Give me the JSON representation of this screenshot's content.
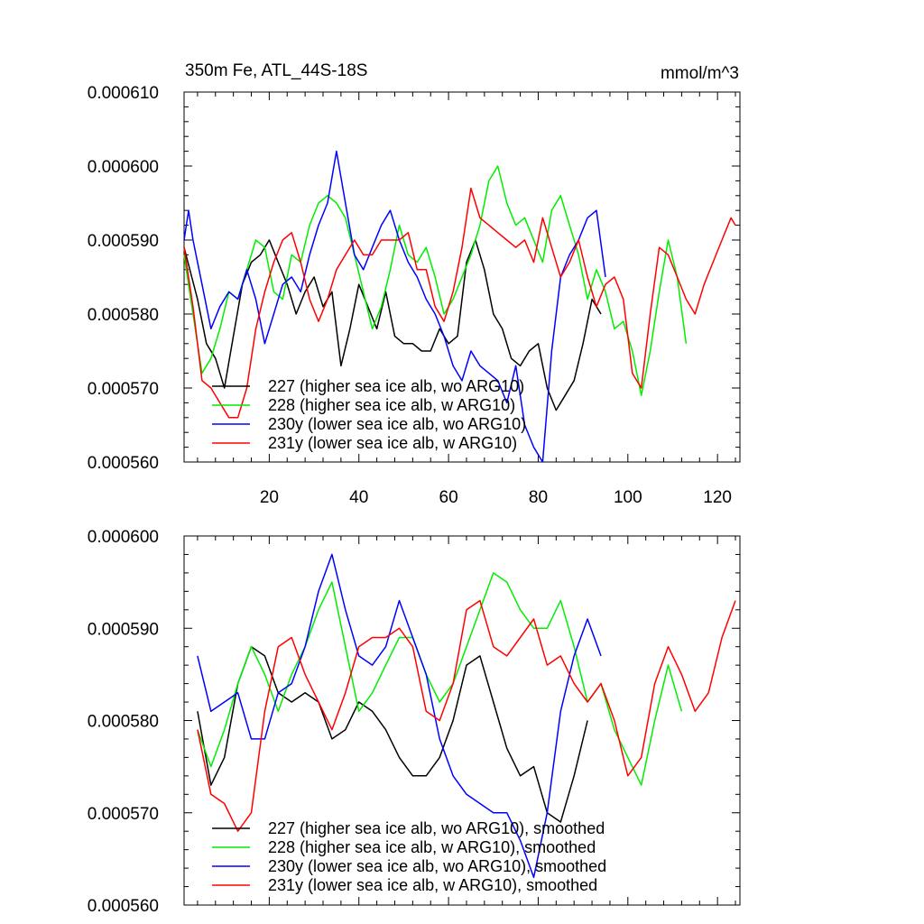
{
  "title_left": "350m Fe, ATL_44S-18S",
  "title_right": "mmol/m^3",
  "colors": {
    "227": "#000000",
    "228": "#00ee00",
    "230y": "#0000ff",
    "231y": "#ff0000"
  },
  "chart_data": [
    {
      "type": "line",
      "xlim": [
        1,
        125
      ],
      "ylim": [
        0.00056,
        0.00061
      ],
      "xticks": [
        "20",
        "40",
        "60",
        "80",
        "100",
        "120"
      ],
      "yticks": [
        "0.000560",
        "0.000570",
        "0.000580",
        "0.000590",
        "0.000600",
        "0.000610"
      ],
      "legend_loc": "bottom-left",
      "series": [
        {
          "id": "227",
          "name": "227 (higher sea ice alb, wo ARG10)",
          "x": [
            1,
            4,
            6,
            8,
            10,
            12,
            14,
            16,
            18,
            20,
            22,
            24,
            26,
            28,
            30,
            32,
            34,
            36,
            38,
            40,
            42,
            44,
            46,
            48,
            50,
            52,
            54,
            56,
            58,
            60,
            62,
            64,
            66,
            68,
            70,
            72,
            74,
            76,
            78,
            80,
            82,
            84,
            86,
            88,
            90,
            92,
            94
          ],
          "y": [
            0.000589,
            0.000582,
            0.000576,
            0.000574,
            0.00057,
            0.000577,
            0.000584,
            0.000587,
            0.000588,
            0.00059,
            0.000587,
            0.000584,
            0.00058,
            0.000583,
            0.000585,
            0.000581,
            0.000583,
            0.000573,
            0.000578,
            0.000584,
            0.000581,
            0.000578,
            0.000583,
            0.000577,
            0.000576,
            0.000576,
            0.000575,
            0.000575,
            0.000578,
            0.000576,
            0.000577,
            0.000587,
            0.00059,
            0.000586,
            0.00058,
            0.000578,
            0.000574,
            0.000573,
            0.000575,
            0.000576,
            0.00057,
            0.000567,
            0.000569,
            0.000571,
            0.000576,
            0.000582,
            0.00058
          ]
        },
        {
          "id": "228",
          "name": "228 (higher sea ice alb, w ARG10)",
          "x": [
            1,
            3,
            5,
            7,
            9,
            11,
            13,
            15,
            17,
            19,
            21,
            23,
            25,
            27,
            29,
            31,
            33,
            35,
            37,
            39,
            41,
            43,
            45,
            47,
            49,
            51,
            53,
            55,
            57,
            59,
            61,
            63,
            65,
            67,
            69,
            71,
            73,
            75,
            77,
            79,
            81,
            83,
            85,
            87,
            89,
            91,
            93,
            95,
            97,
            99,
            101,
            103,
            105,
            107,
            109,
            111,
            113
          ],
          "y": [
            0.000588,
            0.00058,
            0.000572,
            0.000574,
            0.000578,
            0.000583,
            0.000582,
            0.000586,
            0.00059,
            0.000589,
            0.000583,
            0.000582,
            0.000588,
            0.000587,
            0.000592,
            0.000595,
            0.000596,
            0.000595,
            0.000593,
            0.000588,
            0.000583,
            0.000578,
            0.000581,
            0.000586,
            0.000592,
            0.000588,
            0.000587,
            0.000589,
            0.000585,
            0.00058,
            0.000582,
            0.000585,
            0.000588,
            0.000592,
            0.000598,
            0.0006,
            0.000595,
            0.000592,
            0.000593,
            0.00059,
            0.000587,
            0.000594,
            0.000596,
            0.000592,
            0.000588,
            0.000582,
            0.000586,
            0.000583,
            0.000578,
            0.000579,
            0.000575,
            0.000569,
            0.000575,
            0.000583,
            0.00059,
            0.000585,
            0.000576
          ]
        },
        {
          "id": "230y",
          "name": "230y (lower sea ice alb, wo ARG10)",
          "x": [
            1,
            2,
            3,
            5,
            7,
            9,
            11,
            13,
            15,
            17,
            19,
            21,
            23,
            25,
            27,
            29,
            31,
            33,
            35,
            37,
            39,
            41,
            43,
            45,
            47,
            49,
            51,
            53,
            55,
            57,
            59,
            61,
            63,
            65,
            67,
            69,
            71,
            73,
            75,
            77,
            79,
            81,
            83,
            85,
            87,
            89,
            91,
            93,
            95
          ],
          "y": [
            0.00059,
            0.000594,
            0.00059,
            0.000584,
            0.000578,
            0.000581,
            0.000583,
            0.000582,
            0.000586,
            0.000582,
            0.000576,
            0.00058,
            0.000584,
            0.000585,
            0.000583,
            0.000588,
            0.000592,
            0.000595,
            0.000602,
            0.000595,
            0.000588,
            0.000586,
            0.000589,
            0.000592,
            0.000594,
            0.00059,
            0.000587,
            0.000585,
            0.000582,
            0.00058,
            0.000577,
            0.000573,
            0.000571,
            0.000575,
            0.000573,
            0.000572,
            0.000571,
            0.000568,
            0.000573,
            0.000565,
            0.000562,
            0.00056,
            0.000575,
            0.000585,
            0.000588,
            0.00059,
            0.000593,
            0.000594,
            0.000585
          ]
        },
        {
          "id": "231y",
          "name": "231y (lower sea ice alb, w ARG10)",
          "x": [
            1,
            3,
            5,
            7,
            9,
            11,
            13,
            15,
            17,
            19,
            21,
            23,
            25,
            27,
            29,
            31,
            33,
            35,
            37,
            39,
            41,
            43,
            45,
            47,
            49,
            51,
            53,
            55,
            57,
            59,
            61,
            63,
            65,
            67,
            69,
            71,
            73,
            75,
            77,
            79,
            81,
            83,
            85,
            87,
            89,
            91,
            93,
            95,
            97,
            99,
            101,
            103,
            105,
            107,
            109,
            111,
            113,
            115,
            117,
            119,
            121,
            123,
            124
          ],
          "y": [
            0.000589,
            0.000581,
            0.000571,
            0.00057,
            0.000568,
            0.000566,
            0.000566,
            0.00057,
            0.000578,
            0.000583,
            0.000587,
            0.00059,
            0.000591,
            0.000587,
            0.000582,
            0.000579,
            0.000582,
            0.000586,
            0.000588,
            0.00059,
            0.000588,
            0.000588,
            0.00059,
            0.00059,
            0.00059,
            0.000591,
            0.000586,
            0.000586,
            0.000581,
            0.000579,
            0.000583,
            0.000589,
            0.000597,
            0.000593,
            0.000592,
            0.000591,
            0.00059,
            0.000589,
            0.00059,
            0.000587,
            0.000593,
            0.000589,
            0.000585,
            0.000587,
            0.00059,
            0.000585,
            0.000581,
            0.000584,
            0.000585,
            0.000582,
            0.000572,
            0.00057,
            0.00058,
            0.000589,
            0.000588,
            0.000585,
            0.000582,
            0.00058,
            0.000584,
            0.000587,
            0.00059,
            0.000593,
            0.000592
          ]
        }
      ]
    },
    {
      "type": "line",
      "xlim": [
        1,
        125
      ],
      "ylim": [
        0.00056,
        0.0006
      ],
      "xticks": [],
      "yticks": [
        "0.000560",
        "0.000570",
        "0.000580",
        "0.000590",
        "0.000600"
      ],
      "legend_loc": "bottom-left",
      "series": [
        {
          "id": "227",
          "name": "227 (higher sea ice alb, wo ARG10), smoothed",
          "x": [
            4,
            7,
            10,
            13,
            16,
            19,
            22,
            25,
            28,
            31,
            34,
            37,
            40,
            43,
            46,
            49,
            52,
            55,
            58,
            61,
            64,
            67,
            70,
            73,
            76,
            79,
            82,
            85,
            88,
            91
          ],
          "y": [
            0.000581,
            0.000573,
            0.000576,
            0.000584,
            0.000588,
            0.000587,
            0.000583,
            0.000582,
            0.000583,
            0.000582,
            0.000578,
            0.000579,
            0.000582,
            0.000581,
            0.000579,
            0.000576,
            0.000574,
            0.000574,
            0.000576,
            0.00058,
            0.000586,
            0.000587,
            0.000582,
            0.000577,
            0.000574,
            0.000575,
            0.00057,
            0.000569,
            0.000574,
            0.00058
          ]
        },
        {
          "id": "228",
          "name": "228 (higher sea ice alb, w ARG10), smoothed",
          "x": [
            4,
            7,
            10,
            13,
            16,
            19,
            22,
            25,
            28,
            31,
            34,
            37,
            40,
            43,
            46,
            49,
            52,
            55,
            58,
            61,
            64,
            67,
            70,
            73,
            76,
            79,
            82,
            85,
            88,
            91,
            94,
            97,
            100,
            103,
            106,
            109,
            112
          ],
          "y": [
            0.000579,
            0.000575,
            0.000579,
            0.000584,
            0.000588,
            0.000585,
            0.000581,
            0.000585,
            0.000588,
            0.000592,
            0.000595,
            0.000588,
            0.000581,
            0.000583,
            0.000586,
            0.000589,
            0.000589,
            0.000585,
            0.000582,
            0.000584,
            0.000588,
            0.000592,
            0.000596,
            0.000595,
            0.000592,
            0.00059,
            0.00059,
            0.000593,
            0.000588,
            0.000582,
            0.000584,
            0.000579,
            0.000576,
            0.000573,
            0.00058,
            0.000586,
            0.000581
          ]
        },
        {
          "id": "230y",
          "name": "230y (lower sea ice alb, wo ARG10), smoothed",
          "x": [
            4,
            7,
            10,
            13,
            16,
            19,
            22,
            25,
            28,
            31,
            34,
            37,
            40,
            43,
            46,
            49,
            52,
            55,
            58,
            61,
            64,
            67,
            70,
            73,
            76,
            79,
            82,
            85,
            88,
            91,
            94
          ],
          "y": [
            0.000587,
            0.000581,
            0.000582,
            0.000583,
            0.000578,
            0.000578,
            0.000583,
            0.000584,
            0.000588,
            0.000594,
            0.000598,
            0.000592,
            0.000587,
            0.000586,
            0.000588,
            0.000593,
            0.000589,
            0.000585,
            0.000578,
            0.000574,
            0.000572,
            0.000571,
            0.00057,
            0.00057,
            0.000567,
            0.000563,
            0.00057,
            0.000581,
            0.000587,
            0.000591,
            0.000587
          ]
        },
        {
          "id": "231y",
          "name": "231y (lower sea ice alb, w ARG10), smoothed",
          "x": [
            4,
            7,
            10,
            13,
            16,
            19,
            22,
            25,
            28,
            31,
            34,
            37,
            40,
            43,
            46,
            49,
            52,
            55,
            58,
            61,
            64,
            67,
            70,
            73,
            76,
            79,
            82,
            85,
            88,
            91,
            94,
            97,
            100,
            103,
            106,
            109,
            112,
            115,
            118,
            121,
            124
          ],
          "y": [
            0.000579,
            0.000572,
            0.000571,
            0.000568,
            0.00057,
            0.000581,
            0.000588,
            0.000589,
            0.000585,
            0.000582,
            0.000579,
            0.000583,
            0.000588,
            0.000589,
            0.000589,
            0.00059,
            0.000588,
            0.000581,
            0.00058,
            0.000584,
            0.000592,
            0.000593,
            0.000588,
            0.000587,
            0.000589,
            0.000591,
            0.000586,
            0.000587,
            0.000584,
            0.000582,
            0.000584,
            0.00058,
            0.000574,
            0.000576,
            0.000584,
            0.000588,
            0.000585,
            0.000581,
            0.000583,
            0.000589,
            0.000593
          ]
        }
      ]
    }
  ]
}
